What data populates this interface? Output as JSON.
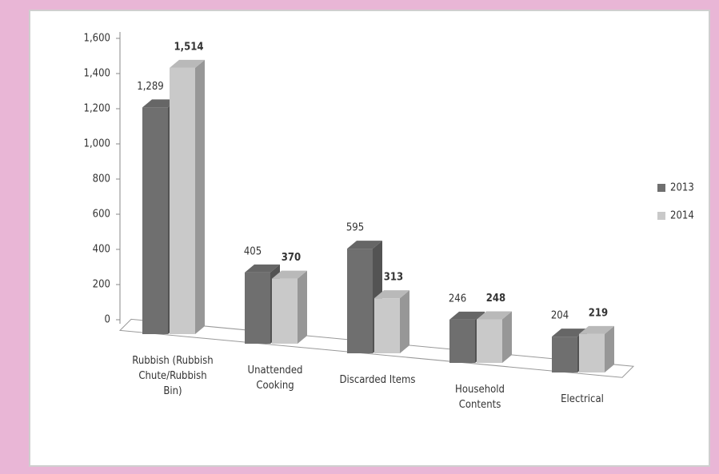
{
  "chart_data": {
    "type": "bar3d",
    "categories": [
      "Rubbish (Rubbish Chute/Rubbish Bin)",
      "Unattended Cooking",
      "Discarded Items",
      "Household Contents",
      "Electrical"
    ],
    "series": [
      {
        "name": "2013",
        "color": "#6f6f6f",
        "values": [
          1289,
          405,
          595,
          246,
          204
        ],
        "value_labels": [
          "1,289",
          "405",
          "595",
          "246",
          "204"
        ]
      },
      {
        "name": "2014",
        "color": "#c9c9c9",
        "values": [
          1514,
          370,
          313,
          248,
          219
        ],
        "value_labels": [
          "1,514",
          "370",
          "313",
          "248",
          "219"
        ]
      }
    ],
    "ylim": [
      0,
      1600
    ],
    "yticks": [
      0,
      200,
      400,
      600,
      800,
      {
        "value": 1000,
        "label": "1,000"
      },
      {
        "value": 1200,
        "label": "1,200"
      },
      {
        "value": 1400,
        "label": "1,400"
      },
      {
        "value": 1600,
        "label": "1,600"
      }
    ],
    "legend": "right"
  }
}
